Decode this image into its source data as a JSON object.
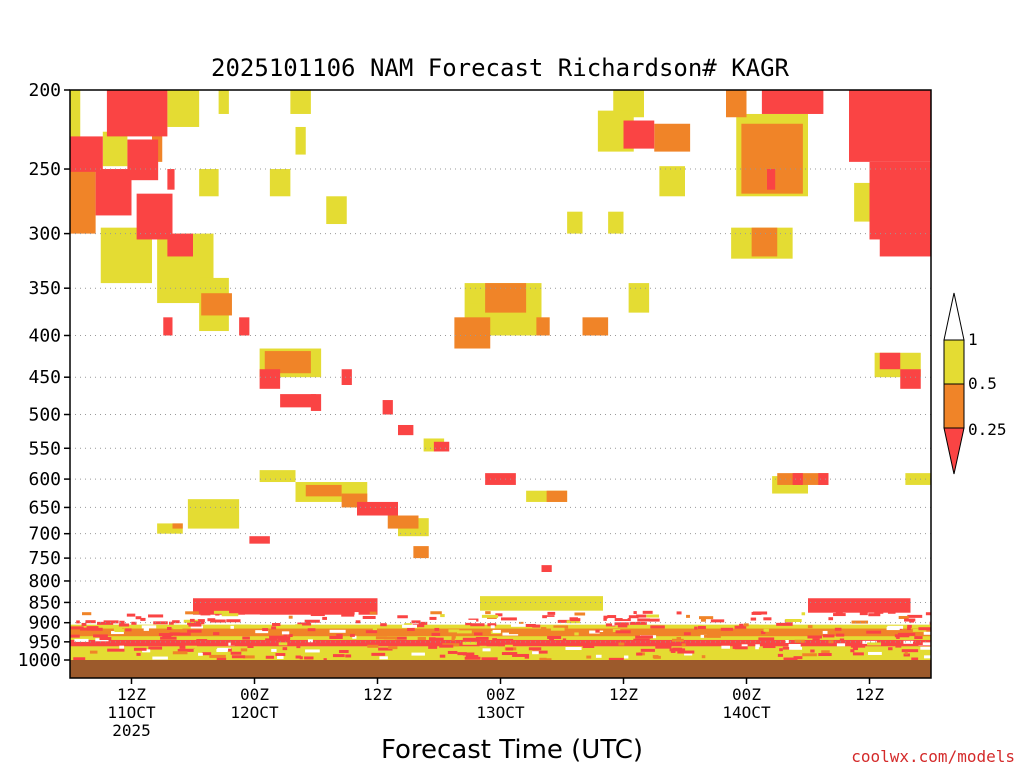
{
  "chart_data": {
    "type": "heatmap",
    "title": "2025101106 NAM Forecast Richardson# KAGR",
    "xlabel": "Forecast Time (UTC)",
    "credit": "coolwx.com/models",
    "y_axis": {
      "scale": "pressure (hPa), top to bottom",
      "range": [
        200,
        1000
      ],
      "ticks": [
        "200",
        "250",
        "300",
        "350",
        "400",
        "450",
        "500",
        "550",
        "600",
        "650",
        "700",
        "750",
        "800",
        "850",
        "900",
        "950",
        "1000"
      ]
    },
    "x_axis": {
      "range_hours": [
        0,
        84
      ],
      "ticks": [
        {
          "hour": 6,
          "line1": "12Z",
          "line2": "11OCT",
          "line3": "2025"
        },
        {
          "hour": 18,
          "line1": "00Z",
          "line2": "12OCT",
          "line3": ""
        },
        {
          "hour": 30,
          "line1": "12Z",
          "line2": "",
          "line3": ""
        },
        {
          "hour": 42,
          "line1": "00Z",
          "line2": "13OCT",
          "line3": ""
        },
        {
          "hour": 54,
          "line1": "12Z",
          "line2": "",
          "line3": ""
        },
        {
          "hour": 66,
          "line1": "00Z",
          "line2": "14OCT",
          "line3": ""
        },
        {
          "hour": 78,
          "line1": "12Z",
          "line2": "",
          "line3": ""
        }
      ]
    },
    "colorbar": {
      "labels": [
        "1",
        "0.5",
        "0.25"
      ],
      "bins": [
        {
          "range": "> 1",
          "color": "#ffffff"
        },
        {
          "range": "0.5 - 1",
          "color": "#e4dc33"
        },
        {
          "range": "0.25 - 0.5",
          "color": "#f08428"
        },
        {
          "range": "< 0.25",
          "color": "#fa4444"
        }
      ]
    },
    "ground_color": "#9c5a2c",
    "grid": "dotted at pressure ticks",
    "regions_note": "cells approximate Richardson number class by forecast hour [start,end] and pressure [top,bottom]",
    "cells": [
      {
        "h": [
          3.6,
          9.5
        ],
        "p": [
          200,
          228
        ],
        "c": "red"
      },
      {
        "h": [
          9.5,
          12.6
        ],
        "p": [
          200,
          222
        ],
        "c": "yellow"
      },
      {
        "h": [
          14.5,
          15.5
        ],
        "p": [
          200,
          214
        ],
        "c": "yellow"
      },
      {
        "h": [
          21.5,
          23.5
        ],
        "p": [
          200,
          214
        ],
        "c": "yellow"
      },
      {
        "h": [
          0,
          1
        ],
        "p": [
          200,
          240
        ],
        "c": "yellow"
      },
      {
        "h": [
          0,
          3.2
        ],
        "p": [
          228,
          252
        ],
        "c": "red"
      },
      {
        "h": [
          3.2,
          5.6
        ],
        "p": [
          225,
          248
        ],
        "c": "yellow"
      },
      {
        "h": [
          5.6,
          8.6
        ],
        "p": [
          230,
          258
        ],
        "c": "red"
      },
      {
        "h": [
          8,
          9
        ],
        "p": [
          225,
          245
        ],
        "c": "orange"
      },
      {
        "h": [
          0,
          2.5
        ],
        "p": [
          245,
          300
        ],
        "c": "orange"
      },
      {
        "h": [
          2.5,
          6
        ],
        "p": [
          250,
          285
        ],
        "c": "red"
      },
      {
        "h": [
          6.5,
          10
        ],
        "p": [
          268,
          305
        ],
        "c": "red"
      },
      {
        "h": [
          3,
          8
        ],
        "p": [
          295,
          345
        ],
        "c": "yellow"
      },
      {
        "h": [
          8.5,
          14
        ],
        "p": [
          300,
          365
        ],
        "c": "yellow"
      },
      {
        "h": [
          9.5,
          12
        ],
        "p": [
          300,
          320
        ],
        "c": "red"
      },
      {
        "h": [
          12.8,
          15.8
        ],
        "p": [
          355,
          378
        ],
        "c": "orange"
      },
      {
        "h": [
          12.6,
          15.5
        ],
        "p": [
          340,
          395
        ],
        "c": "yellow"
      },
      {
        "h": [
          9.5,
          10.2
        ],
        "p": [
          250,
          265
        ],
        "c": "red"
      },
      {
        "h": [
          12.6,
          14.5
        ],
        "p": [
          250,
          270
        ],
        "c": "yellow"
      },
      {
        "h": [
          19.5,
          21.5
        ],
        "p": [
          250,
          270
        ],
        "c": "yellow"
      },
      {
        "h": [
          25,
          27
        ],
        "p": [
          270,
          292
        ],
        "c": "yellow"
      },
      {
        "h": [
          22,
          23
        ],
        "p": [
          222,
          240
        ],
        "c": "yellow"
      },
      {
        "h": [
          53,
          56
        ],
        "p": [
          200,
          216
        ],
        "c": "yellow"
      },
      {
        "h": [
          51.5,
          55
        ],
        "p": [
          212,
          238
        ],
        "c": "yellow"
      },
      {
        "h": [
          54,
          57
        ],
        "p": [
          218,
          236
        ],
        "c": "red"
      },
      {
        "h": [
          57,
          60.5
        ],
        "p": [
          220,
          238
        ],
        "c": "orange"
      },
      {
        "h": [
          57.5,
          60
        ],
        "p": [
          248,
          270
        ],
        "c": "yellow"
      },
      {
        "h": [
          52.5,
          54
        ],
        "p": [
          282,
          300
        ],
        "c": "yellow"
      },
      {
        "h": [
          48.5,
          50
        ],
        "p": [
          282,
          300
        ],
        "c": "yellow"
      },
      {
        "h": [
          64,
          66
        ],
        "p": [
          200,
          216
        ],
        "c": "orange"
      },
      {
        "h": [
          67.5,
          73.5
        ],
        "p": [
          200,
          214
        ],
        "c": "red"
      },
      {
        "h": [
          65.5,
          71.5
        ],
        "p": [
          220,
          268
        ],
        "c": "orange"
      },
      {
        "h": [
          65,
          72
        ],
        "p": [
          214,
          270
        ],
        "c": "yellow"
      },
      {
        "h": [
          68,
          68.8
        ],
        "p": [
          250,
          265
        ],
        "c": "red"
      },
      {
        "h": [
          76,
          84
        ],
        "p": [
          200,
          245
        ],
        "c": "red"
      },
      {
        "h": [
          78,
          84
        ],
        "p": [
          245,
          305
        ],
        "c": "red"
      },
      {
        "h": [
          76.5,
          78
        ],
        "p": [
          260,
          290
        ],
        "c": "yellow"
      },
      {
        "h": [
          79,
          84
        ],
        "p": [
          300,
          320
        ],
        "c": "red"
      },
      {
        "h": [
          64.5,
          70.5
        ],
        "p": [
          295,
          322
        ],
        "c": "yellow"
      },
      {
        "h": [
          66.5,
          69
        ],
        "p": [
          295,
          320
        ],
        "c": "orange"
      },
      {
        "h": [
          38.5,
          46
        ],
        "p": [
          345,
          400
        ],
        "c": "yellow"
      },
      {
        "h": [
          39,
          41.5
        ],
        "p": [
          350,
          365
        ],
        "c": "yellow"
      },
      {
        "h": [
          37.5,
          41
        ],
        "p": [
          380,
          415
        ],
        "c": "orange"
      },
      {
        "h": [
          40.5,
          44.5
        ],
        "p": [
          345,
          375
        ],
        "c": "orange"
      },
      {
        "h": [
          45.5,
          46.8
        ],
        "p": [
          380,
          400
        ],
        "c": "orange"
      },
      {
        "h": [
          50,
          52.5
        ],
        "p": [
          380,
          400
        ],
        "c": "orange"
      },
      {
        "h": [
          54.5,
          56.5
        ],
        "p": [
          345,
          375
        ],
        "c": "yellow"
      },
      {
        "h": [
          16.5,
          17.5
        ],
        "p": [
          380,
          400
        ],
        "c": "red"
      },
      {
        "h": [
          9.1,
          10
        ],
        "p": [
          380,
          400
        ],
        "c": "red"
      },
      {
        "h": [
          18.5,
          24.5
        ],
        "p": [
          415,
          450
        ],
        "c": "yellow"
      },
      {
        "h": [
          19,
          23.5
        ],
        "p": [
          418,
          445
        ],
        "c": "orange"
      },
      {
        "h": [
          18.5,
          20.5
        ],
        "p": [
          440,
          465
        ],
        "c": "red"
      },
      {
        "h": [
          20.5,
          24
        ],
        "p": [
          472,
          490
        ],
        "c": "red"
      },
      {
        "h": [
          23.5,
          24.5
        ],
        "p": [
          472,
          495
        ],
        "c": "red"
      },
      {
        "h": [
          26.5,
          27.5
        ],
        "p": [
          440,
          460
        ],
        "c": "red"
      },
      {
        "h": [
          78.5,
          83
        ],
        "p": [
          420,
          450
        ],
        "c": "yellow"
      },
      {
        "h": [
          79,
          81
        ],
        "p": [
          420,
          440
        ],
        "c": "red"
      },
      {
        "h": [
          81,
          83
        ],
        "p": [
          440,
          465
        ],
        "c": "red"
      },
      {
        "h": [
          30.5,
          31.5
        ],
        "p": [
          480,
          500
        ],
        "c": "red"
      },
      {
        "h": [
          32,
          33.5
        ],
        "p": [
          515,
          530
        ],
        "c": "red"
      },
      {
        "h": [
          34.5,
          36.5
        ],
        "p": [
          535,
          555
        ],
        "c": "yellow"
      },
      {
        "h": [
          35.5,
          37
        ],
        "p": [
          540,
          555
        ],
        "c": "red"
      },
      {
        "h": [
          18.5,
          22
        ],
        "p": [
          585,
          605
        ],
        "c": "yellow"
      },
      {
        "h": [
          22,
          29
        ],
        "p": [
          605,
          640
        ],
        "c": "yellow"
      },
      {
        "h": [
          23,
          26.5
        ],
        "p": [
          610,
          630
        ],
        "c": "orange"
      },
      {
        "h": [
          26.5,
          29
        ],
        "p": [
          625,
          650
        ],
        "c": "orange"
      },
      {
        "h": [
          28,
          32
        ],
        "p": [
          640,
          665
        ],
        "c": "red"
      },
      {
        "h": [
          31,
          34
        ],
        "p": [
          665,
          690
        ],
        "c": "orange"
      },
      {
        "h": [
          32,
          35
        ],
        "p": [
          670,
          705
        ],
        "c": "yellow"
      },
      {
        "h": [
          33.5,
          35
        ],
        "p": [
          725,
          750
        ],
        "c": "orange"
      },
      {
        "h": [
          11.5,
          16.5
        ],
        "p": [
          635,
          690
        ],
        "c": "yellow"
      },
      {
        "h": [
          8.5,
          11
        ],
        "p": [
          680,
          700
        ],
        "c": "yellow"
      },
      {
        "h": [
          10,
          11
        ],
        "p": [
          680,
          690
        ],
        "c": "orange"
      },
      {
        "h": [
          17.5,
          19.5
        ],
        "p": [
          705,
          720
        ],
        "c": "red"
      },
      {
        "h": [
          40.5,
          43.5
        ],
        "p": [
          590,
          610
        ],
        "c": "red"
      },
      {
        "h": [
          44.5,
          48.5
        ],
        "p": [
          620,
          640
        ],
        "c": "yellow"
      },
      {
        "h": [
          46.5,
          48.5
        ],
        "p": [
          620,
          640
        ],
        "c": "orange"
      },
      {
        "h": [
          68.5,
          72
        ],
        "p": [
          595,
          625
        ],
        "c": "yellow"
      },
      {
        "h": [
          69,
          74
        ],
        "p": [
          590,
          610
        ],
        "c": "orange"
      },
      {
        "h": [
          70.5,
          71.5
        ],
        "p": [
          590,
          610
        ],
        "c": "red"
      },
      {
        "h": [
          73,
          74
        ],
        "p": [
          590,
          610
        ],
        "c": "red"
      },
      {
        "h": [
          81.5,
          84
        ],
        "p": [
          590,
          610
        ],
        "c": "yellow"
      },
      {
        "h": [
          46,
          47
        ],
        "p": [
          765,
          780
        ],
        "c": "red"
      },
      {
        "h": [
          0,
          84
        ],
        "p": [
          905,
          1000
        ],
        "c": "yellow"
      }
    ],
    "bands": [
      {
        "h": [
          0,
          84
        ],
        "p": [
          915,
          935
        ],
        "c": "orange"
      },
      {
        "h": [
          0,
          84
        ],
        "p": [
          945,
          962
        ],
        "c": "red"
      },
      {
        "h": [
          12,
          30
        ],
        "p": [
          840,
          880
        ],
        "c": "red"
      },
      {
        "h": [
          40,
          52
        ],
        "p": [
          835,
          870
        ],
        "c": "yellow"
      },
      {
        "h": [
          72,
          82
        ],
        "p": [
          840,
          875
        ],
        "c": "red"
      }
    ]
  }
}
